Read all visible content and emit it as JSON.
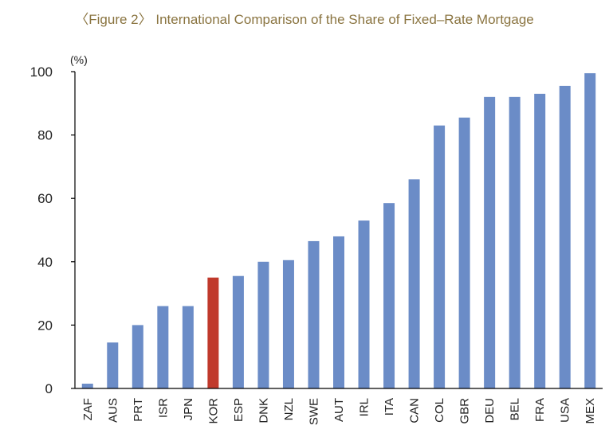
{
  "chart_data": {
    "type": "bar",
    "title": "〈Figure 2〉 International Comparison of the Share of Fixed–Rate Mortgage",
    "unit_label": "(%)",
    "ylabel": "",
    "xlabel": "",
    "ylim": [
      0,
      100
    ],
    "yticks": [
      0,
      20,
      40,
      60,
      80,
      100
    ],
    "grid": false,
    "categories": [
      "ZAF",
      "AUS",
      "PRT",
      "ISR",
      "JPN",
      "KOR",
      "ESP",
      "DNK",
      "NZL",
      "SWE",
      "AUT",
      "IRL",
      "ITA",
      "CAN",
      "COL",
      "GBR",
      "DEU",
      "BEL",
      "FRA",
      "USA",
      "MEX"
    ],
    "values": [
      1.5,
      14.5,
      20,
      26,
      26,
      35,
      35.5,
      40,
      40.5,
      46.5,
      48,
      53,
      58.5,
      66,
      83,
      85.5,
      92,
      92,
      93,
      95.5,
      99.5
    ],
    "highlight": "KOR",
    "colors": {
      "bar": "#6b8cc7",
      "highlight": "#c0392b",
      "title": "#8a7440"
    }
  }
}
